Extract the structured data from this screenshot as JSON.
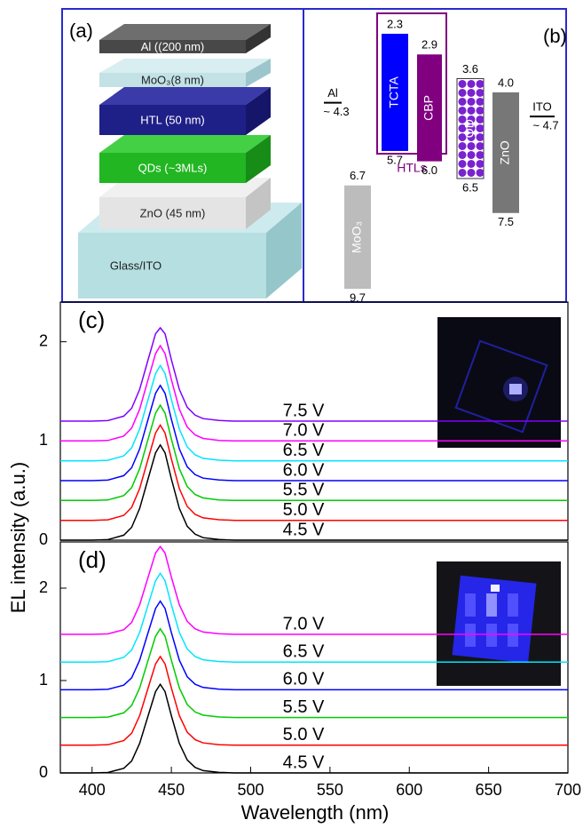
{
  "panel_a": {
    "label": "(a)",
    "layers": [
      "Al ((200 nm)",
      "MoO₃(8 nm)",
      "HTL (50 nm)",
      "QDs (~3MLs)",
      "ZnO (45 nm)",
      "Glass/ITO"
    ]
  },
  "panel_b": {
    "label": "(b)",
    "group": "HTLs",
    "materials": [
      {
        "name": "Al",
        "level": {
          "value": 4.3,
          "label": "~ 4.3"
        }
      },
      {
        "name": "MoO₃",
        "lumo": 6.7,
        "homo": 9.7
      },
      {
        "name": "TCTA",
        "lumo": 2.3,
        "homo": 5.7
      },
      {
        "name": "CBP",
        "lumo": 2.9,
        "homo": {
          "value": 6,
          "label": "6.0"
        }
      },
      {
        "name": "QD",
        "lumo": 3.6,
        "homo": 6.5
      },
      {
        "name": "ZnO",
        "lumo": {
          "value": 4,
          "label": "4.0"
        },
        "homo": 7.5
      },
      {
        "name": "ITO",
        "level": {
          "value": 4.7,
          "label": "~ 4.7"
        }
      }
    ]
  },
  "chart_data": [
    {
      "type": "line",
      "label": "(c)",
      "y_label": "EL intensity (a.u.)",
      "x": [
        380,
        400,
        410,
        420,
        425,
        430,
        435,
        440,
        443,
        446,
        450,
        455,
        460,
        465,
        470,
        480,
        490,
        500,
        550,
        600,
        650,
        700
      ],
      "xlim": [
        380,
        700
      ],
      "ylim": [
        0,
        2.4
      ],
      "yticks": [
        0,
        1,
        2
      ],
      "series": [
        {
          "name": "4.5 V",
          "color": "#000000",
          "values": [
            0,
            0,
            0.005,
            0.05,
            0.13,
            0.32,
            0.6,
            0.88,
            0.96,
            0.88,
            0.62,
            0.32,
            0.14,
            0.06,
            0.025,
            0.006,
            0,
            0,
            0,
            0,
            0,
            0
          ]
        },
        {
          "name": "5.0 V",
          "color": "#ff0000",
          "values": [
            0.2,
            0.2,
            0.205,
            0.25,
            0.33,
            0.52,
            0.8,
            1.08,
            1.16,
            1.08,
            0.82,
            0.52,
            0.34,
            0.26,
            0.225,
            0.206,
            0.2,
            0.2,
            0.2,
            0.2,
            0.2,
            0.2
          ]
        },
        {
          "name": "5.5 V",
          "color": "#00cc00",
          "values": [
            0.4,
            0.4,
            0.405,
            0.45,
            0.53,
            0.72,
            1.0,
            1.28,
            1.36,
            1.28,
            1.02,
            0.72,
            0.54,
            0.46,
            0.425,
            0.406,
            0.4,
            0.4,
            0.4,
            0.4,
            0.4,
            0.4
          ]
        },
        {
          "name": "6.0 V",
          "color": "#0000ff",
          "values": [
            0.6,
            0.6,
            0.605,
            0.65,
            0.73,
            0.92,
            1.2,
            1.48,
            1.56,
            1.48,
            1.22,
            0.92,
            0.74,
            0.66,
            0.625,
            0.606,
            0.6,
            0.6,
            0.6,
            0.6,
            0.6,
            0.6
          ]
        },
        {
          "name": "6.5 V",
          "color": "#00e5ff",
          "values": [
            0.8,
            0.8,
            0.805,
            0.85,
            0.93,
            1.12,
            1.4,
            1.68,
            1.76,
            1.68,
            1.42,
            1.12,
            0.94,
            0.86,
            0.825,
            0.806,
            0.8,
            0.8,
            0.8,
            0.8,
            0.8,
            0.8
          ]
        },
        {
          "name": "7.0 V",
          "color": "#ff00ff",
          "values": [
            1,
            1,
            1.005,
            1.05,
            1.13,
            1.32,
            1.6,
            1.88,
            1.96,
            1.88,
            1.62,
            1.32,
            1.14,
            1.06,
            1.025,
            1.006,
            1,
            1,
            1,
            1,
            1,
            1
          ]
        },
        {
          "name": "7.5 V",
          "color": "#8000ff",
          "values": [
            1.2,
            1.2,
            1.205,
            1.25,
            1.33,
            1.52,
            1.8,
            2.08,
            2.14,
            2.08,
            1.82,
            1.52,
            1.34,
            1.26,
            1.225,
            1.206,
            1.2,
            1.2,
            1.2,
            1.2,
            1.2,
            1.2
          ]
        }
      ]
    },
    {
      "type": "line",
      "label": "(d)",
      "x_label": "Wavelength (nm)",
      "x": [
        380,
        400,
        410,
        420,
        425,
        430,
        435,
        440,
        443,
        446,
        450,
        455,
        460,
        465,
        470,
        480,
        490,
        500,
        550,
        600,
        650,
        700
      ],
      "xlim": [
        380,
        700
      ],
      "xticks": [
        400,
        450,
        500,
        550,
        600,
        650,
        700
      ],
      "ylim": [
        0,
        2.5
      ],
      "yticks": [
        0,
        1,
        2
      ],
      "series": [
        {
          "name": "4.5 V",
          "color": "#000000",
          "values": [
            0,
            0,
            0.005,
            0.05,
            0.13,
            0.32,
            0.6,
            0.88,
            0.96,
            0.88,
            0.62,
            0.32,
            0.14,
            0.06,
            0.025,
            0.006,
            0,
            0,
            0,
            0,
            0,
            0
          ]
        },
        {
          "name": "5.0 V",
          "color": "#ff0000",
          "values": [
            0.3,
            0.3,
            0.305,
            0.35,
            0.43,
            0.62,
            0.9,
            1.18,
            1.26,
            1.18,
            0.92,
            0.62,
            0.44,
            0.36,
            0.325,
            0.306,
            0.3,
            0.3,
            0.3,
            0.3,
            0.3,
            0.3
          ]
        },
        {
          "name": "5.5 V",
          "color": "#00cc00",
          "values": [
            0.6,
            0.6,
            0.605,
            0.65,
            0.73,
            0.92,
            1.2,
            1.48,
            1.56,
            1.48,
            1.22,
            0.92,
            0.74,
            0.66,
            0.625,
            0.606,
            0.6,
            0.6,
            0.6,
            0.6,
            0.6,
            0.6
          ]
        },
        {
          "name": "6.0 V",
          "color": "#0000ff",
          "values": [
            0.9,
            0.9,
            0.905,
            0.95,
            1.03,
            1.22,
            1.5,
            1.78,
            1.86,
            1.78,
            1.52,
            1.22,
            1.04,
            0.96,
            0.925,
            0.906,
            0.9,
            0.9,
            0.9,
            0.9,
            0.9,
            0.9
          ]
        },
        {
          "name": "6.5 V",
          "color": "#00e5ff",
          "values": [
            1.2,
            1.2,
            1.205,
            1.25,
            1.33,
            1.52,
            1.8,
            2.08,
            2.16,
            2.08,
            1.82,
            1.52,
            1.34,
            1.26,
            1.225,
            1.206,
            1.2,
            1.2,
            1.2,
            1.2,
            1.2,
            1.2
          ]
        },
        {
          "name": "7.0 V",
          "color": "#ff00ff",
          "values": [
            1.5,
            1.5,
            1.505,
            1.55,
            1.63,
            1.82,
            2.1,
            2.38,
            2.45,
            2.38,
            2.12,
            1.82,
            1.64,
            1.56,
            1.525,
            1.506,
            1.5,
            1.5,
            1.5,
            1.5,
            1.5,
            1.5
          ]
        }
      ]
    }
  ]
}
